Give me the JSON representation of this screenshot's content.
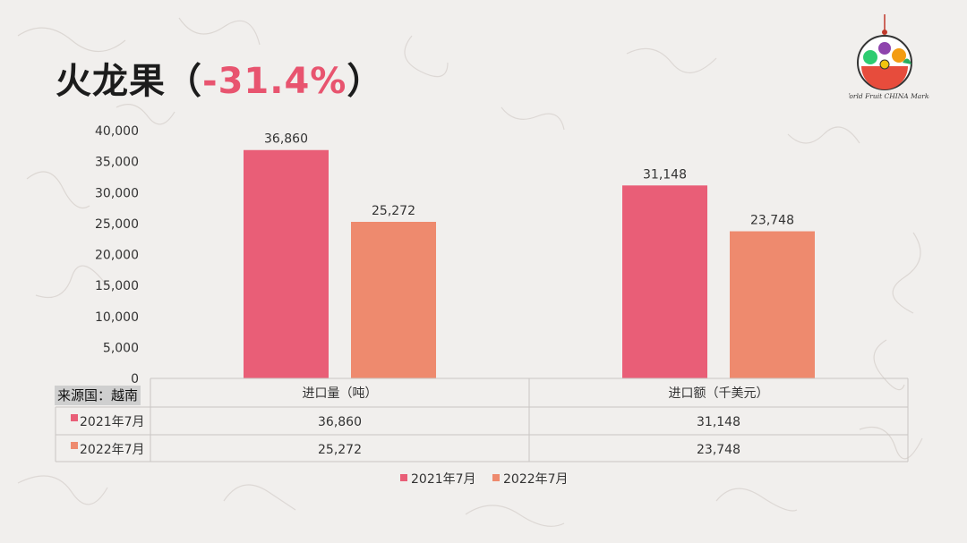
{
  "title": {
    "main": "火龙果（",
    "accent": "-31.4%",
    "close": "）"
  },
  "source_label": "来源国：越南",
  "colors": {
    "series_2021": "#e95e77",
    "series_2022": "#ee8a6e",
    "accent": "#e8546f"
  },
  "logo": {
    "text": "World Fruit CHINA Market"
  },
  "chart_data": {
    "type": "bar",
    "categories": [
      "进口量（吨）",
      "进口额（千美元）"
    ],
    "series": [
      {
        "name": "2021年7月",
        "values": [
          36860,
          31148
        ],
        "labels": [
          "36,860",
          "31,148"
        ]
      },
      {
        "name": "2022年7月",
        "values": [
          25272,
          23748
        ],
        "labels": [
          "25,272",
          "23,748"
        ]
      }
    ],
    "ylim": [
      0,
      40000
    ],
    "yticks": [
      0,
      5000,
      10000,
      15000,
      20000,
      25000,
      30000,
      35000,
      40000
    ],
    "ytick_labels": [
      "0",
      "5,000",
      "10,000",
      "15,000",
      "20,000",
      "25,000",
      "30,000",
      "35,000",
      "40,000"
    ],
    "grid": false,
    "legend": "bottom",
    "data_table": {
      "rows": [
        {
          "name": "2021年7月",
          "cells": [
            "36,860",
            "31,148"
          ]
        },
        {
          "name": "2022年7月",
          "cells": [
            "25,272",
            "23,748"
          ]
        }
      ]
    }
  }
}
